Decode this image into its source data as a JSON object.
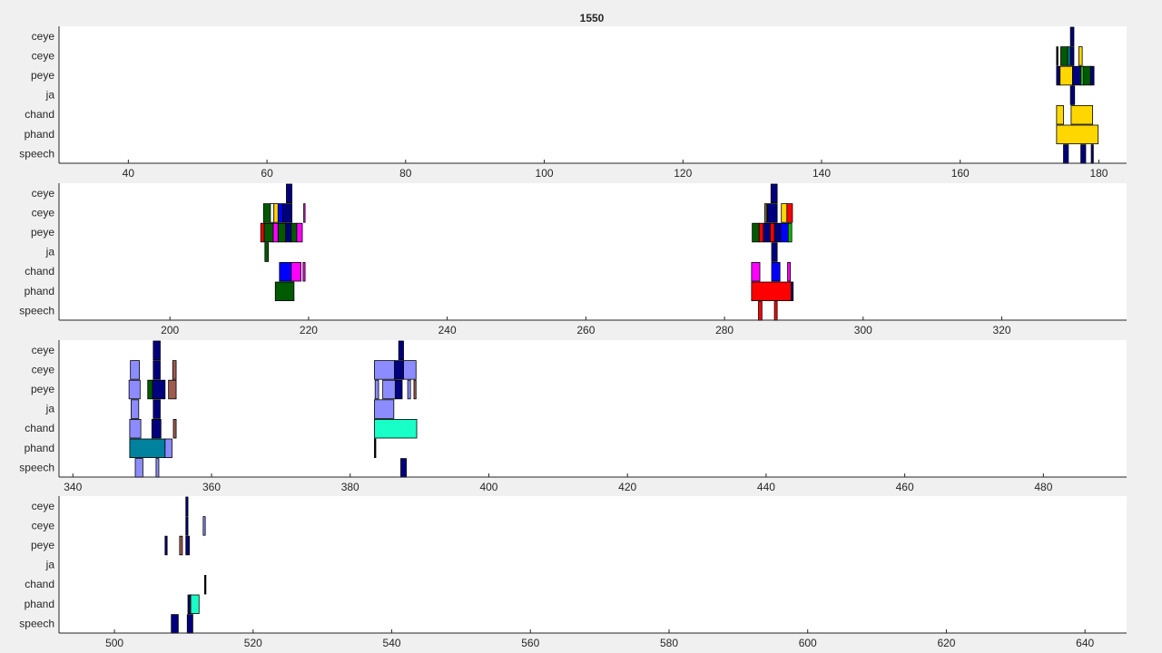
{
  "figure": {
    "title": "1550",
    "background": "#f0f0f0"
  },
  "colors": {
    "navy": "#00007f",
    "gold": "#ffd700",
    "dkgreen": "#005a00",
    "teal": "#008080",
    "red": "#ff0000",
    "magenta": "#ff00ff",
    "blue": "#0000ff",
    "periwinkle": "#8c8cff",
    "rosybrown": "#a05a50",
    "aquamarine": "#19ffc8",
    "tealblue": "#00819e",
    "green": "#00c000",
    "olive": "#8c7a3c",
    "white": "#ffffff",
    "black": "#000000"
  },
  "chart_data": [
    {
      "type": "timeline",
      "rows": [
        "ceye",
        "ceye",
        "peye",
        "ja",
        "chand",
        "phand",
        "speech"
      ],
      "xlim": [
        30,
        184
      ],
      "xticks": [
        40,
        60,
        80,
        100,
        120,
        140,
        160,
        180
      ],
      "segments": [
        {
          "row": 0,
          "x0": 175.9,
          "x1": 176.4,
          "color": "navy"
        },
        {
          "row": 1,
          "x0": 173.9,
          "x1": 174.1,
          "color": "black"
        },
        {
          "row": 1,
          "x0": 174.5,
          "x1": 175.5,
          "color": "dkgreen"
        },
        {
          "row": 1,
          "x0": 175.5,
          "x1": 175.9,
          "color": "teal"
        },
        {
          "row": 1,
          "x0": 175.9,
          "x1": 176.4,
          "color": "navy"
        },
        {
          "row": 1,
          "x0": 177.1,
          "x1": 177.6,
          "color": "gold"
        },
        {
          "row": 2,
          "x0": 173.9,
          "x1": 174.4,
          "color": "navy"
        },
        {
          "row": 2,
          "x0": 174.4,
          "x1": 176.2,
          "color": "gold"
        },
        {
          "row": 2,
          "x0": 176.2,
          "x1": 177.4,
          "color": "navy"
        },
        {
          "row": 2,
          "x0": 177.4,
          "x1": 177.8,
          "color": "green"
        },
        {
          "row": 2,
          "x0": 177.8,
          "x1": 178.8,
          "color": "dkgreen"
        },
        {
          "row": 2,
          "x0": 178.8,
          "x1": 179.3,
          "color": "navy"
        },
        {
          "row": 3,
          "x0": 175.9,
          "x1": 176.5,
          "color": "navy"
        },
        {
          "row": 4,
          "x0": 173.9,
          "x1": 174.9,
          "color": "gold"
        },
        {
          "row": 4,
          "x0": 176.0,
          "x1": 179.1,
          "color": "gold"
        },
        {
          "row": 5,
          "x0": 173.9,
          "x1": 179.9,
          "color": "gold"
        },
        {
          "row": 6,
          "x0": 174.9,
          "x1": 175.6,
          "color": "navy"
        },
        {
          "row": 6,
          "x0": 177.4,
          "x1": 178.1,
          "color": "navy"
        },
        {
          "row": 6,
          "x0": 178.9,
          "x1": 179.2,
          "color": "navy"
        }
      ]
    },
    {
      "type": "timeline",
      "rows": [
        "ceye",
        "ceye",
        "peye",
        "ja",
        "chand",
        "phand",
        "speech"
      ],
      "xlim": [
        184,
        338
      ],
      "xticks": [
        200,
        220,
        240,
        260,
        280,
        300,
        320
      ],
      "segments": [
        {
          "row": 0,
          "x0": 216.8,
          "x1": 217.6,
          "color": "navy"
        },
        {
          "row": 1,
          "x0": 213.5,
          "x1": 214.5,
          "color": "dkgreen"
        },
        {
          "row": 1,
          "x0": 214.5,
          "x1": 215.0,
          "color": "white"
        },
        {
          "row": 1,
          "x0": 215.0,
          "x1": 215.6,
          "color": "gold"
        },
        {
          "row": 1,
          "x0": 215.6,
          "x1": 216.3,
          "color": "blue"
        },
        {
          "row": 1,
          "x0": 216.3,
          "x1": 217.6,
          "color": "navy"
        },
        {
          "row": 1,
          "x0": 219.3,
          "x1": 219.5,
          "color": "magenta"
        },
        {
          "row": 2,
          "x0": 213.1,
          "x1": 213.6,
          "color": "red"
        },
        {
          "row": 2,
          "x0": 213.6,
          "x1": 214.9,
          "color": "dkgreen"
        },
        {
          "row": 2,
          "x0": 214.9,
          "x1": 215.6,
          "color": "magenta"
        },
        {
          "row": 2,
          "x0": 215.6,
          "x1": 216.7,
          "color": "dkgreen"
        },
        {
          "row": 2,
          "x0": 216.7,
          "x1": 217.5,
          "color": "navy"
        },
        {
          "row": 2,
          "x0": 217.5,
          "x1": 218.3,
          "color": "dkgreen"
        },
        {
          "row": 2,
          "x0": 218.3,
          "x1": 219.1,
          "color": "magenta"
        },
        {
          "row": 3,
          "x0": 213.7,
          "x1": 214.2,
          "color": "dkgreen"
        },
        {
          "row": 4,
          "x0": 215.8,
          "x1": 217.5,
          "color": "blue"
        },
        {
          "row": 4,
          "x0": 217.5,
          "x1": 218.9,
          "color": "magenta"
        },
        {
          "row": 4,
          "x0": 219.2,
          "x1": 219.5,
          "color": "magenta"
        },
        {
          "row": 5,
          "x0": 215.2,
          "x1": 217.9,
          "color": "dkgreen"
        },
        {
          "row": 0,
          "x0": 286.7,
          "x1": 287.6,
          "color": "navy"
        },
        {
          "row": 1,
          "x0": 285.8,
          "x1": 286.1,
          "color": "olive"
        },
        {
          "row": 1,
          "x0": 286.2,
          "x1": 287.6,
          "color": "navy"
        },
        {
          "row": 1,
          "x0": 288.2,
          "x1": 289.0,
          "color": "gold"
        },
        {
          "row": 1,
          "x0": 289.0,
          "x1": 289.8,
          "color": "red"
        },
        {
          "row": 2,
          "x0": 284.0,
          "x1": 285.0,
          "color": "dkgreen"
        },
        {
          "row": 2,
          "x0": 285.0,
          "x1": 285.6,
          "color": "red"
        },
        {
          "row": 2,
          "x0": 285.6,
          "x1": 286.6,
          "color": "navy"
        },
        {
          "row": 2,
          "x0": 286.6,
          "x1": 287.2,
          "color": "red"
        },
        {
          "row": 2,
          "x0": 287.2,
          "x1": 288.1,
          "color": "navy"
        },
        {
          "row": 2,
          "x0": 288.1,
          "x1": 289.2,
          "color": "blue"
        },
        {
          "row": 2,
          "x0": 289.2,
          "x1": 289.7,
          "color": "green"
        },
        {
          "row": 3,
          "x0": 286.8,
          "x1": 287.6,
          "color": "navy"
        },
        {
          "row": 4,
          "x0": 283.9,
          "x1": 285.1,
          "color": "magenta"
        },
        {
          "row": 4,
          "x0": 286.8,
          "x1": 288.0,
          "color": "blue"
        },
        {
          "row": 4,
          "x0": 289.1,
          "x1": 289.5,
          "color": "magenta"
        },
        {
          "row": 5,
          "x0": 283.9,
          "x1": 289.6,
          "color": "red"
        },
        {
          "row": 5,
          "x0": 289.6,
          "x1": 289.9,
          "color": "navy"
        },
        {
          "row": 6,
          "x0": 284.9,
          "x1": 285.4,
          "color": "red"
        },
        {
          "row": 6,
          "x0": 287.2,
          "x1": 287.6,
          "color": "red"
        }
      ]
    },
    {
      "type": "timeline",
      "rows": [
        "ceye",
        "ceye",
        "peye",
        "ja",
        "chand",
        "phand",
        "speech"
      ],
      "xlim": [
        338,
        492
      ],
      "xticks": [
        340,
        360,
        380,
        400,
        420,
        440,
        460,
        480
      ],
      "segments": [
        {
          "row": 0,
          "x0": 351.6,
          "x1": 352.6,
          "color": "navy"
        },
        {
          "row": 1,
          "x0": 348.3,
          "x1": 349.6,
          "color": "periwinkle"
        },
        {
          "row": 1,
          "x0": 351.6,
          "x1": 352.6,
          "color": "navy"
        },
        {
          "row": 1,
          "x0": 354.4,
          "x1": 354.9,
          "color": "rosybrown"
        },
        {
          "row": 2,
          "x0": 348.1,
          "x1": 349.7,
          "color": "periwinkle"
        },
        {
          "row": 2,
          "x0": 350.8,
          "x1": 351.5,
          "color": "dkgreen"
        },
        {
          "row": 2,
          "x0": 351.5,
          "x1": 353.3,
          "color": "navy"
        },
        {
          "row": 2,
          "x0": 353.8,
          "x1": 354.9,
          "color": "rosybrown"
        },
        {
          "row": 3,
          "x0": 348.4,
          "x1": 349.5,
          "color": "periwinkle"
        },
        {
          "row": 3,
          "x0": 351.6,
          "x1": 352.6,
          "color": "navy"
        },
        {
          "row": 4,
          "x0": 348.2,
          "x1": 349.8,
          "color": "periwinkle"
        },
        {
          "row": 4,
          "x0": 351.4,
          "x1": 352.7,
          "color": "navy"
        },
        {
          "row": 4,
          "x0": 354.5,
          "x1": 354.9,
          "color": "rosybrown"
        },
        {
          "row": 5,
          "x0": 348.2,
          "x1": 353.3,
          "color": "tealblue"
        },
        {
          "row": 5,
          "x0": 353.3,
          "x1": 354.3,
          "color": "periwinkle"
        },
        {
          "row": 6,
          "x0": 349.0,
          "x1": 350.1,
          "color": "periwinkle"
        },
        {
          "row": 6,
          "x0": 352.0,
          "x1": 352.4,
          "color": "periwinkle"
        },
        {
          "row": 0,
          "x0": 387.0,
          "x1": 387.7,
          "color": "navy"
        },
        {
          "row": 1,
          "x0": 383.5,
          "x1": 386.4,
          "color": "periwinkle"
        },
        {
          "row": 1,
          "x0": 386.4,
          "x1": 387.7,
          "color": "navy"
        },
        {
          "row": 1,
          "x0": 387.7,
          "x1": 389.5,
          "color": "periwinkle"
        },
        {
          "row": 2,
          "x0": 383.6,
          "x1": 384.1,
          "color": "periwinkle"
        },
        {
          "row": 2,
          "x0": 384.7,
          "x1": 386.5,
          "color": "periwinkle"
        },
        {
          "row": 2,
          "x0": 386.5,
          "x1": 387.5,
          "color": "navy"
        },
        {
          "row": 2,
          "x0": 388.3,
          "x1": 388.7,
          "color": "periwinkle"
        },
        {
          "row": 2,
          "x0": 389.2,
          "x1": 389.5,
          "color": "rosybrown"
        },
        {
          "row": 3,
          "x0": 383.5,
          "x1": 386.3,
          "color": "periwinkle"
        },
        {
          "row": 4,
          "x0": 383.5,
          "x1": 389.6,
          "color": "aquamarine"
        },
        {
          "row": 5,
          "x0": 383.5,
          "x1": 383.7,
          "color": "black"
        },
        {
          "row": 6,
          "x0": 387.3,
          "x1": 388.1,
          "color": "navy"
        }
      ]
    },
    {
      "type": "timeline",
      "rows": [
        "ceye",
        "ceye",
        "peye",
        "ja",
        "chand",
        "phand",
        "speech"
      ],
      "xlim": [
        492,
        646
      ],
      "xticks": [
        500,
        520,
        540,
        560,
        580,
        600,
        620,
        640
      ],
      "segments": [
        {
          "row": 0,
          "x0": 510.3,
          "x1": 510.6,
          "color": "navy"
        },
        {
          "row": 1,
          "x0": 510.3,
          "x1": 510.6,
          "color": "navy"
        },
        {
          "row": 1,
          "x0": 512.8,
          "x1": 513.1,
          "color": "periwinkle"
        },
        {
          "row": 2,
          "x0": 507.3,
          "x1": 507.6,
          "color": "navy"
        },
        {
          "row": 2,
          "x0": 509.4,
          "x1": 509.8,
          "color": "rosybrown"
        },
        {
          "row": 2,
          "x0": 510.3,
          "x1": 510.8,
          "color": "navy"
        },
        {
          "row": 4,
          "x0": 513.0,
          "x1": 513.1,
          "color": "black"
        },
        {
          "row": 5,
          "x0": 510.6,
          "x1": 510.9,
          "color": "navy"
        },
        {
          "row": 5,
          "x0": 510.9,
          "x1": 511.0,
          "color": "rosybrown"
        },
        {
          "row": 5,
          "x0": 511.0,
          "x1": 512.2,
          "color": "aquamarine"
        },
        {
          "row": 6,
          "x0": 508.2,
          "x1": 509.2,
          "color": "navy"
        },
        {
          "row": 6,
          "x0": 510.5,
          "x1": 511.3,
          "color": "navy"
        }
      ]
    }
  ]
}
